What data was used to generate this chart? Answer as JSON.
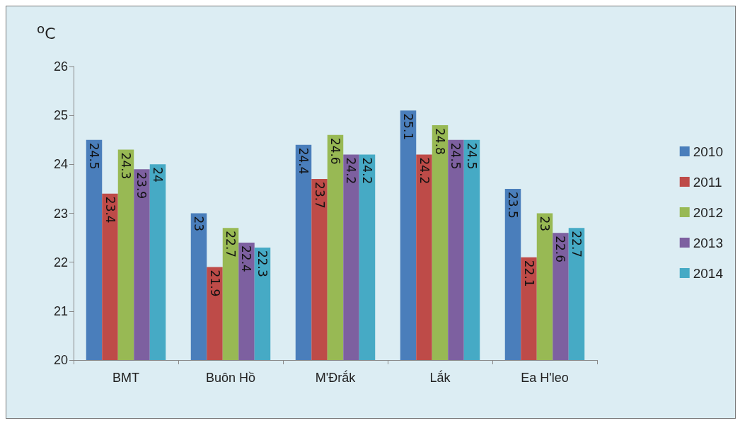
{
  "chart_data": {
    "type": "bar",
    "ylabel": "$^{o}$C",
    "categories": [
      "BMT",
      "Buôn Hồ",
      "M'Đrắk",
      "Lắk",
      "Ea H'leo"
    ],
    "series": [
      {
        "name": "2010",
        "color": "#4a7ebb",
        "values": [
          24.5,
          23,
          24.4,
          25.1,
          23.5
        ]
      },
      {
        "name": "2011",
        "color": "#be4b48",
        "values": [
          23.4,
          21.9,
          23.7,
          24.2,
          22.1
        ]
      },
      {
        "name": "2012",
        "color": "#98b954",
        "values": [
          24.3,
          22.7,
          24.6,
          24.8,
          23
        ]
      },
      {
        "name": "2013",
        "color": "#7d60a0",
        "values": [
          23.9,
          22.4,
          24.2,
          24.5,
          22.6
        ]
      },
      {
        "name": "2014",
        "color": "#46aac5",
        "values": [
          24,
          22.3,
          24.2,
          24.5,
          22.7
        ]
      }
    ],
    "ylim": [
      20,
      26
    ],
    "yticks": [
      20,
      21,
      22,
      23,
      24,
      25,
      26
    ],
    "data_labels": true,
    "legend": "right",
    "grid": false
  }
}
